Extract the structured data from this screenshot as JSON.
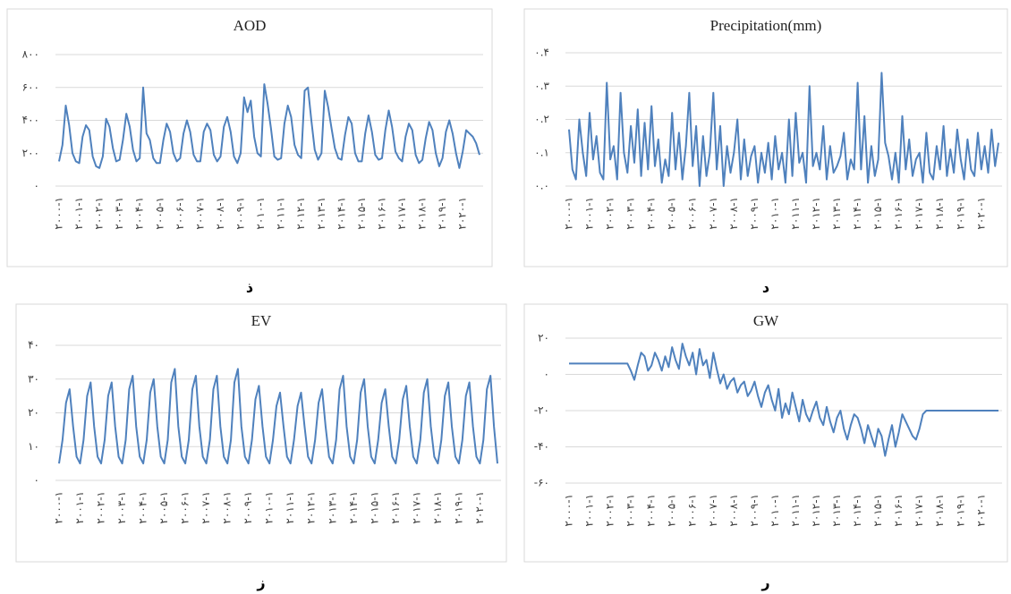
{
  "chart_data": [
    {
      "type": "line",
      "title": "AOD",
      "caption": "ذ",
      "color": "#4f81bd",
      "grid": true,
      "ylim": [
        0,
        800
      ],
      "yticks": [
        {
          "value": 0,
          "label": "۰"
        },
        {
          "value": 200,
          "label": "۲۰۰"
        },
        {
          "value": 400,
          "label": "۴۰۰"
        },
        {
          "value": 600,
          "label": "۶۰۰"
        },
        {
          "value": 800,
          "label": "۸۰۰"
        }
      ],
      "categories": [
        "۲۰۰۰-۱",
        null,
        null,
        null,
        null,
        null,
        "۲۰۰۱-۱",
        null,
        null,
        null,
        null,
        null,
        "۲۰۰۲-۱",
        null,
        null,
        null,
        null,
        null,
        "۲۰۰۳-۱",
        null,
        null,
        null,
        null,
        null,
        "۲۰۰۴-۱",
        null,
        null,
        null,
        null,
        null,
        "۲۰۰۵-۱",
        null,
        null,
        null,
        null,
        null,
        "۲۰۰۶-۱",
        null,
        null,
        null,
        null,
        null,
        "۲۰۰۷-۱",
        null,
        null,
        null,
        null,
        null,
        "۲۰۰۸-۱",
        null,
        null,
        null,
        null,
        null,
        "۲۰۰۹-۱",
        null,
        null,
        null,
        null,
        null,
        "۲۰۱۰-۱",
        null,
        null,
        null,
        null,
        null,
        "۲۰۱۱-۱",
        null,
        null,
        null,
        null,
        null,
        "۲۰۱۲-۱",
        null,
        null,
        null,
        null,
        null,
        "۲۰۱۳-۱",
        null,
        null,
        null,
        null,
        null,
        "۲۰۱۴-۱",
        null,
        null,
        null,
        null,
        null,
        "۲۰۱۵-۱",
        null,
        null,
        null,
        null,
        null,
        "۲۰۱۶-۱",
        null,
        null,
        null,
        null,
        null,
        "۲۰۱۷-۱",
        null,
        null,
        null,
        null,
        null,
        "۲۰۱۸-۱",
        null,
        null,
        null,
        null,
        null,
        "۲۰۱۹-۱",
        null,
        null,
        null,
        null,
        null,
        "۲۰۲۰-۱",
        null,
        null,
        null,
        null,
        null
      ],
      "values": [
        150,
        250,
        490,
        370,
        200,
        150,
        140,
        300,
        370,
        340,
        180,
        120,
        110,
        180,
        410,
        360,
        230,
        150,
        160,
        280,
        440,
        360,
        220,
        150,
        170,
        600,
        320,
        280,
        170,
        140,
        140,
        280,
        380,
        330,
        200,
        150,
        170,
        320,
        400,
        330,
        190,
        150,
        150,
        330,
        380,
        340,
        190,
        150,
        180,
        360,
        420,
        330,
        180,
        140,
        200,
        540,
        450,
        520,
        300,
        200,
        180,
        620,
        500,
        350,
        180,
        160,
        170,
        380,
        490,
        420,
        250,
        190,
        170,
        580,
        600,
        400,
        220,
        160,
        200,
        580,
        480,
        350,
        230,
        170,
        160,
        310,
        420,
        380,
        200,
        150,
        150,
        320,
        430,
        330,
        190,
        160,
        170,
        340,
        460,
        360,
        210,
        170,
        150,
        300,
        380,
        340,
        190,
        140,
        160,
        290,
        390,
        340,
        200,
        120,
        170,
        330,
        400,
        320,
        200,
        110,
        210,
        340,
        320,
        300,
        260,
        190
      ]
    },
    {
      "type": "line",
      "title": "Precipitation(mm)",
      "caption": "د",
      "color": "#4f81bd",
      "grid": true,
      "ylim": [
        0,
        0.4
      ],
      "yticks": [
        {
          "value": 0,
          "label": "۰.۰"
        },
        {
          "value": 0.1,
          "label": "۰.۱"
        },
        {
          "value": 0.2,
          "label": "۰.۲"
        },
        {
          "value": 0.3,
          "label": "۰.۳"
        },
        {
          "value": 0.4,
          "label": "۰.۴"
        }
      ],
      "categories": [
        "۲۰۰۰-۱",
        null,
        null,
        null,
        null,
        null,
        "۲۰۰۱-۱",
        null,
        null,
        null,
        null,
        null,
        "۲۰۰۲-۱",
        null,
        null,
        null,
        null,
        null,
        "۲۰۰۳-۱",
        null,
        null,
        null,
        null,
        null,
        "۲۰۰۴-۱",
        null,
        null,
        null,
        null,
        null,
        "۲۰۰۵-۱",
        null,
        null,
        null,
        null,
        null,
        "۲۰۰۶-۱",
        null,
        null,
        null,
        null,
        null,
        "۲۰۰۷-۱",
        null,
        null,
        null,
        null,
        null,
        "۲۰۰۸-۱",
        null,
        null,
        null,
        null,
        null,
        "۲۰۰۹-۱",
        null,
        null,
        null,
        null,
        null,
        "۲۰۱۰-۱",
        null,
        null,
        null,
        null,
        null,
        "۲۰۱۱-۱",
        null,
        null,
        null,
        null,
        null,
        "۲۰۱۲-۱",
        null,
        null,
        null,
        null,
        null,
        "۲۰۱۳-۱",
        null,
        null,
        null,
        null,
        null,
        "۲۰۱۴-۱",
        null,
        null,
        null,
        null,
        null,
        "۲۰۱۵-۱",
        null,
        null,
        null,
        null,
        null,
        "۲۰۱۶-۱",
        null,
        null,
        null,
        null,
        null,
        "۲۰۱۷-۱",
        null,
        null,
        null,
        null,
        null,
        "۲۰۱۸-۱",
        null,
        null,
        null,
        null,
        null,
        "۲۰۱۹-۱",
        null,
        null,
        null,
        null,
        null,
        "۲۰۲۰-۱",
        null,
        null,
        null,
        null,
        null
      ],
      "values": [
        0.17,
        0.05,
        0.02,
        0.2,
        0.1,
        0.03,
        0.22,
        0.08,
        0.15,
        0.04,
        0.02,
        0.31,
        0.08,
        0.12,
        0.02,
        0.28,
        0.1,
        0.04,
        0.18,
        0.07,
        0.23,
        0.03,
        0.19,
        0.05,
        0.24,
        0.06,
        0.14,
        0.01,
        0.08,
        0.03,
        0.22,
        0.05,
        0.16,
        0.02,
        0.12,
        0.28,
        0.06,
        0.18,
        0,
        0.15,
        0.03,
        0.1,
        0.28,
        0.05,
        0.18,
        0,
        0.12,
        0.04,
        0.1,
        0.2,
        0.02,
        0.14,
        0.03,
        0.09,
        0.12,
        0.01,
        0.1,
        0.04,
        0.13,
        0.02,
        0.15,
        0.05,
        0.1,
        0.01,
        0.2,
        0.03,
        0.22,
        0.07,
        0.1,
        0.01,
        0.3,
        0.06,
        0.1,
        0.05,
        0.18,
        0.02,
        0.12,
        0.04,
        0.06,
        0.09,
        0.16,
        0.02,
        0.08,
        0.05,
        0.31,
        0.05,
        0.21,
        0.01,
        0.12,
        0.03,
        0.08,
        0.34,
        0.13,
        0.09,
        0.02,
        0.1,
        0.01,
        0.21,
        0.05,
        0.14,
        0.03,
        0.08,
        0.1,
        0.01,
        0.16,
        0.04,
        0.02,
        0.12,
        0.05,
        0.18,
        0.03,
        0.11,
        0.04,
        0.17,
        0.08,
        0.02,
        0.14,
        0.05,
        0.03,
        0.16,
        0.05,
        0.12,
        0.04,
        0.17,
        0.06,
        0.13
      ]
    },
    {
      "type": "line",
      "title": "EV",
      "caption": "ز",
      "color": "#4f81bd",
      "grid": true,
      "ylim": [
        0,
        40
      ],
      "yticks": [
        {
          "value": 0,
          "label": "۰"
        },
        {
          "value": 10,
          "label": "۱۰"
        },
        {
          "value": 20,
          "label": "۲۰"
        },
        {
          "value": 30,
          "label": "۳۰"
        },
        {
          "value": 40,
          "label": "۴۰"
        }
      ],
      "categories": [
        "۲۰۰۰-۱",
        null,
        null,
        null,
        null,
        null,
        "۲۰۰۱-۱",
        null,
        null,
        null,
        null,
        null,
        "۲۰۰۲-۱",
        null,
        null,
        null,
        null,
        null,
        "۲۰۰۳-۱",
        null,
        null,
        null,
        null,
        null,
        "۲۰۰۴-۱",
        null,
        null,
        null,
        null,
        null,
        "۲۰۰۵-۱",
        null,
        null,
        null,
        null,
        null,
        "۲۰۰۶-۱",
        null,
        null,
        null,
        null,
        null,
        "۲۰۰۷-۱",
        null,
        null,
        null,
        null,
        null,
        "۲۰۰۸-۱",
        null,
        null,
        null,
        null,
        null,
        "۲۰۰۹-۱",
        null,
        null,
        null,
        null,
        null,
        "۲۰۱۰-۱",
        null,
        null,
        null,
        null,
        null,
        "۲۰۱۱-۱",
        null,
        null,
        null,
        null,
        null,
        "۲۰۱۲-۱",
        null,
        null,
        null,
        null,
        null,
        "۲۰۱۳-۱",
        null,
        null,
        null,
        null,
        null,
        "۲۰۱۴-۱",
        null,
        null,
        null,
        null,
        null,
        "۲۰۱۵-۱",
        null,
        null,
        null,
        null,
        null,
        "۲۰۱۶-۱",
        null,
        null,
        null,
        null,
        null,
        "۲۰۱۷-۱",
        null,
        null,
        null,
        null,
        null,
        "۲۰۱۸-۱",
        null,
        null,
        null,
        null,
        null,
        "۲۰۱۹-۱",
        null,
        null,
        null,
        null,
        null,
        "۲۰۲۰-۱",
        null,
        null,
        null,
        null,
        null
      ],
      "values": [
        5,
        12,
        23,
        27,
        16,
        7,
        5,
        12,
        25,
        29,
        16,
        7,
        5,
        12,
        25,
        29,
        16,
        7,
        5,
        12,
        27,
        31,
        16,
        7,
        5,
        12,
        26,
        30,
        16,
        7,
        5,
        12,
        29,
        33,
        16,
        7,
        5,
        12,
        27,
        31,
        16,
        7,
        5,
        12,
        27,
        31,
        16,
        7,
        5,
        12,
        29,
        33,
        16,
        7,
        5,
        12,
        24,
        28,
        16,
        7,
        5,
        12,
        22,
        26,
        16,
        7,
        5,
        12,
        22,
        26,
        16,
        7,
        5,
        12,
        23,
        27,
        16,
        7,
        5,
        12,
        27,
        31,
        16,
        7,
        5,
        12,
        26,
        30,
        16,
        7,
        5,
        12,
        23,
        27,
        16,
        7,
        5,
        12,
        24,
        28,
        16,
        7,
        5,
        12,
        26,
        30,
        16,
        7,
        5,
        12,
        25,
        29,
        16,
        7,
        5,
        12,
        25,
        29,
        16,
        7,
        5,
        12,
        27,
        31,
        16,
        5
      ]
    },
    {
      "type": "line",
      "title": "GW",
      "caption": "ر",
      "color": "#4f81bd",
      "grid": true,
      "ylim": [
        -60,
        20
      ],
      "yticks": [
        {
          "value": -60,
          "label": "-۶۰"
        },
        {
          "value": -40,
          "label": "-۴۰"
        },
        {
          "value": -20,
          "label": "-۲۰"
        },
        {
          "value": 0,
          "label": "۰"
        },
        {
          "value": 20,
          "label": "۲۰"
        }
      ],
      "categories": [
        "۲۰۰۰-۱",
        null,
        null,
        null,
        null,
        null,
        "۲۰۰۱-۱",
        null,
        null,
        null,
        null,
        null,
        "۲۰۰۲-۱",
        null,
        null,
        null,
        null,
        null,
        "۲۰۰۳-۱",
        null,
        null,
        null,
        null,
        null,
        "۲۰۰۴-۱",
        null,
        null,
        null,
        null,
        null,
        "۲۰۰۵-۱",
        null,
        null,
        null,
        null,
        null,
        "۲۰۰۶-۱",
        null,
        null,
        null,
        null,
        null,
        "۲۰۰۷-۱",
        null,
        null,
        null,
        null,
        null,
        "۲۰۰۸-۱",
        null,
        null,
        null,
        null,
        null,
        "۲۰۰۹-۱",
        null,
        null,
        null,
        null,
        null,
        "۲۰۱۰-۱",
        null,
        null,
        null,
        null,
        null,
        "۲۰۱۱-۱",
        null,
        null,
        null,
        null,
        null,
        "۲۰۱۲-۱",
        null,
        null,
        null,
        null,
        null,
        "۲۰۱۳-۱",
        null,
        null,
        null,
        null,
        null,
        "۲۰۱۴-۱",
        null,
        null,
        null,
        null,
        null,
        "۲۰۱۵-۱",
        null,
        null,
        null,
        null,
        null,
        "۲۰۱۶-۱",
        null,
        null,
        null,
        null,
        null,
        "۲۰۱۷-۱",
        null,
        null,
        null,
        null,
        null,
        "۲۰۱۸-۱",
        null,
        null,
        null,
        null,
        null,
        "۲۰۱۹-۱",
        null,
        null,
        null,
        null,
        null,
        "۲۰۲۰-۱",
        null,
        null,
        null,
        null,
        null
      ],
      "values": [
        6,
        6,
        6,
        6,
        6,
        6,
        6,
        6,
        6,
        6,
        6,
        6,
        6,
        6,
        6,
        6,
        6,
        6,
        2,
        -3,
        5,
        12,
        10,
        2,
        5,
        12,
        8,
        2,
        10,
        4,
        15,
        8,
        3,
        17,
        10,
        5,
        12,
        0,
        14,
        5,
        8,
        -2,
        12,
        3,
        -5,
        0,
        -8,
        -4,
        -2,
        -10,
        -6,
        -4,
        -12,
        -9,
        -4,
        -12,
        -18,
        -10,
        -6,
        -14,
        -20,
        -8,
        -24,
        -16,
        -22,
        -10,
        -18,
        -26,
        -14,
        -22,
        -26,
        -20,
        -15,
        -24,
        -28,
        -18,
        -26,
        -32,
        -24,
        -20,
        -30,
        -36,
        -28,
        -22,
        -24,
        -30,
        -38,
        -28,
        -34,
        -40,
        -30,
        -34,
        -45,
        -36,
        -28,
        -40,
        -32,
        -22,
        -26,
        -30,
        -34,
        -36,
        -30,
        -22,
        -20,
        -20,
        -20,
        -20,
        -20,
        -20,
        -20,
        -20,
        -20,
        -20,
        -20,
        -20,
        -20,
        -20,
        -20,
        -20,
        -20,
        -20,
        -20,
        -20,
        -20,
        -20
      ]
    }
  ]
}
